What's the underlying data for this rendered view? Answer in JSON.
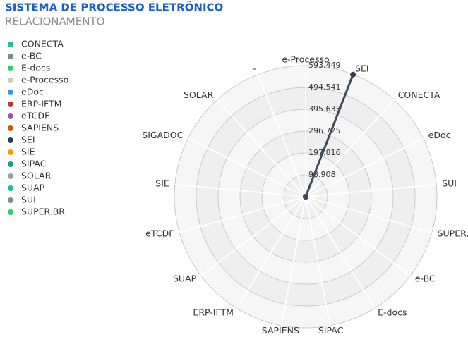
{
  "chart_data": {
    "type": "radar",
    "title": "SISTEMA DE PROCESSO ELETRÔNICO",
    "subtitle": "RELACIONAMENTO",
    "categories": [
      "e-Processo",
      "SEI",
      "CONECTA",
      "eDoc",
      "SUI",
      "SUPER.BR",
      "e-BC",
      "E-docs",
      "SIPAC",
      "SAPIENS",
      "ERP-IFTM",
      "SUAP",
      "eTCDF",
      "SIE",
      "SIGADOC",
      "SOLAR",
      "-"
    ],
    "values": [
      0,
      593,
      0,
      0,
      0,
      0,
      0,
      0,
      0,
      0,
      0,
      0,
      0,
      0,
      0,
      0,
      0
    ],
    "line_color": "#3b4a5e",
    "rlim": [
      0,
      593.449
    ],
    "rticks": [
      98.908,
      197.816,
      296.725,
      395.633,
      494.541,
      593.449
    ],
    "legend": [
      {
        "name": "CONECTA",
        "color": "#26b99a"
      },
      {
        "name": "e-BC",
        "color": "#7f8c8d"
      },
      {
        "name": "E-docs",
        "color": "#2ecc71"
      },
      {
        "name": "e-Processo",
        "color": "#c8c8c8"
      },
      {
        "name": "eDoc",
        "color": "#3498db"
      },
      {
        "name": "ERP-IFTM",
        "color": "#c0392b"
      },
      {
        "name": "eTCDF",
        "color": "#9b59b6"
      },
      {
        "name": "SAPIENS",
        "color": "#d35400"
      },
      {
        "name": "SEI",
        "color": "#2c3e50"
      },
      {
        "name": "SIE",
        "color": "#f39c12"
      },
      {
        "name": "SIPAC",
        "color": "#16a085"
      },
      {
        "name": "SOLAR",
        "color": "#95a5a6"
      },
      {
        "name": "SUAP",
        "color": "#1abc9c"
      },
      {
        "name": "SUI",
        "color": "#7f8c8d"
      },
      {
        "name": "SUPER.BR",
        "color": "#2ecc71"
      }
    ]
  }
}
